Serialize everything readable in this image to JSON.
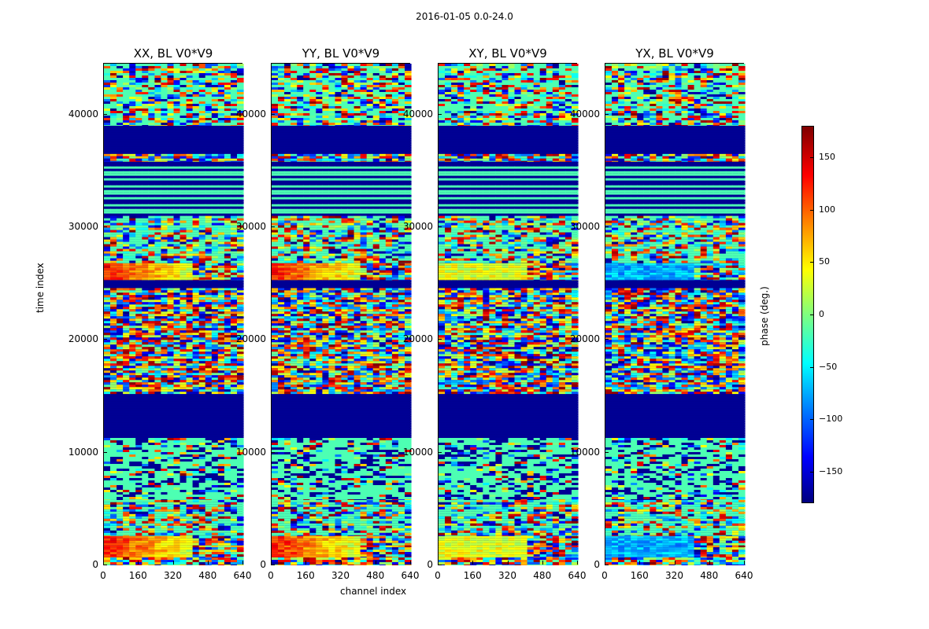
{
  "chart_data": {
    "type": "heatmap",
    "suptitle": "2016-01-05 0.0-24.0",
    "panels": [
      {
        "title": "XX, BL V0*V9",
        "tone": "warm"
      },
      {
        "title": "YY, BL V0*V9",
        "tone": "warm"
      },
      {
        "title": "XY, BL V0*V9",
        "tone": "mixed"
      },
      {
        "title": "YX, BL V0*V9",
        "tone": "cool"
      }
    ],
    "xlabel": "channel index",
    "ylabel": "time index",
    "xlim": [
      0,
      640
    ],
    "ylim": [
      0,
      44500
    ],
    "xticks": [
      "0",
      "160",
      "320",
      "480",
      "640"
    ],
    "yticks": [
      "0",
      "10000",
      "20000",
      "30000",
      "40000"
    ],
    "colorbar": {
      "label": "phase (deg.)",
      "range": [
        -180,
        180
      ],
      "ticks": [
        "150",
        "100",
        "50",
        "0",
        "−50",
        "−100",
        "−150"
      ],
      "tick_values": [
        150,
        100,
        50,
        0,
        -50,
        -100,
        -150
      ]
    }
  }
}
